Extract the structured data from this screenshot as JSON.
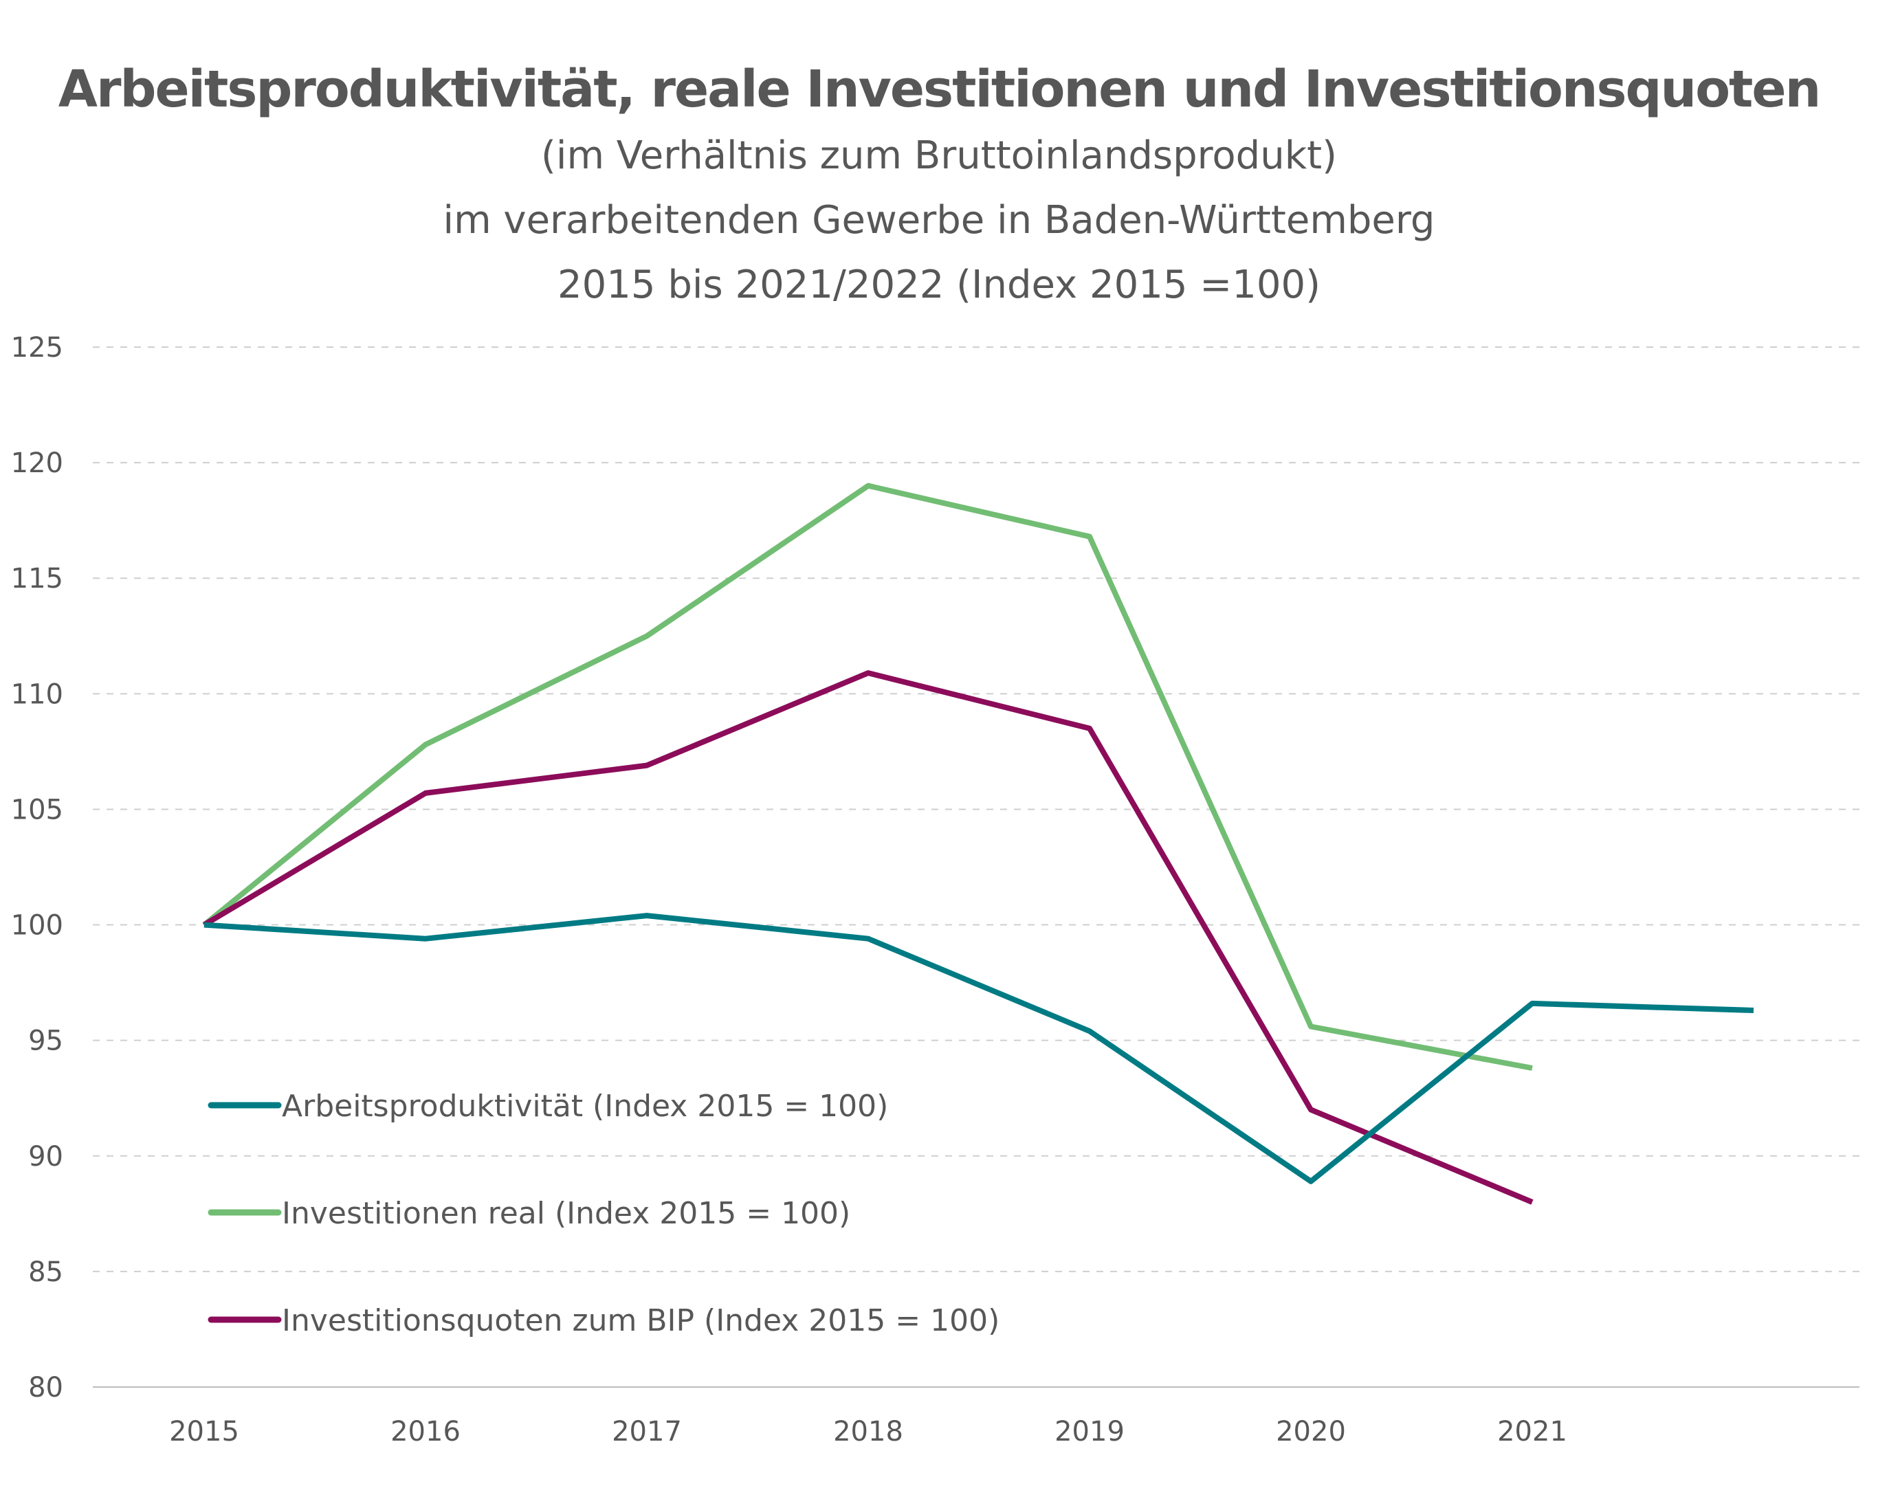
{
  "chart_data": {
    "type": "line",
    "title": "Arbeitsproduktivität, reale Investitionen und Investitionsquoten",
    "subtitle_lines": [
      "(im Verhältnis zum Bruttoinlandsprodukt)",
      "im verarbeitenden Gewerbe in Baden-Württemberg",
      "2015 bis 2021/2022 (Index 2015 =100)"
    ],
    "xlabel": "",
    "ylabel": "",
    "x": [
      "2015",
      "2016",
      "2017",
      "2018",
      "2019",
      "2020",
      "2021",
      "2022"
    ],
    "x_tick_labels": [
      "2015",
      "2016",
      "2017",
      "2018",
      "2019",
      "2020",
      "2021"
    ],
    "ylim": [
      80,
      125
    ],
    "y_ticks": [
      80,
      85,
      90,
      95,
      100,
      105,
      110,
      115,
      120,
      125
    ],
    "grid": "horizontal dashed",
    "legend_position": "bottom-left inside plot",
    "series": [
      {
        "name": "Arbeitsproduktivität (Index 2015 = 100)",
        "color": "#007B84",
        "values": [
          100.0,
          99.4,
          100.4,
          99.4,
          95.4,
          88.9,
          96.6,
          96.3
        ]
      },
      {
        "name": "Investitionen real (Index 2015 = 100)",
        "color": "#72BD74",
        "values": [
          100.0,
          107.8,
          112.5,
          119.0,
          116.8,
          95.6,
          93.8,
          null
        ]
      },
      {
        "name": "Investitionsquoten zum BIP (Index 2015 = 100)",
        "color": "#8C0C5A",
        "values": [
          100.0,
          105.7,
          106.9,
          110.9,
          108.5,
          92.0,
          88.0,
          null
        ]
      }
    ]
  }
}
